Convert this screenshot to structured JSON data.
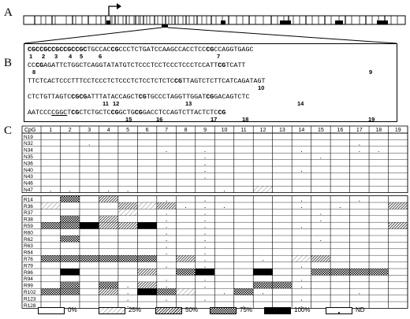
{
  "panels": {
    "a": "A",
    "b": "B",
    "c": "C"
  },
  "sequence": {
    "lines": [
      [
        [
          "CGC",
          "cg"
        ],
        [
          "CGC",
          "cg"
        ],
        [
          "CGC",
          "cg"
        ],
        [
          "CGC",
          "cg"
        ],
        [
          "CGC",
          "cg"
        ],
        [
          "TGCCAC",
          ""
        ],
        [
          "CG",
          "cg"
        ],
        [
          "CCCTCTGATCCAAGCCACCTCC",
          ""
        ],
        [
          "CG",
          "cg"
        ],
        [
          "CCAGGTGAGC",
          ""
        ]
      ],
      [
        [
          "CC",
          ""
        ],
        [
          "CG",
          "cg"
        ],
        [
          "AGATTCTGGCTCAGGTATATGTCTCCCTCCTCCCTCCCTCCATT",
          ""
        ],
        [
          "CG",
          "cg"
        ],
        [
          "TCATT",
          ""
        ]
      ],
      [
        [
          "TTCTCACTCCCTTTCCTCCCTCTCCCTCTCCTCTCTC",
          ""
        ],
        [
          "CG",
          "cg"
        ],
        [
          "TTAGTCTCTTCATCAGATAGT",
          ""
        ]
      ],
      [
        [
          "CTCTGTTAGTC",
          ""
        ],
        [
          "CG",
          "cg"
        ],
        [
          "CG",
          "cg"
        ],
        [
          "ATTTATACCAGCT",
          ""
        ],
        [
          "CG",
          "cg"
        ],
        [
          "TGCCCTAGGTTGGAT",
          ""
        ],
        [
          "CG",
          "cg"
        ],
        [
          "GACAGTCTC",
          ""
        ]
      ],
      [
        [
          "AATCCC",
          ""
        ],
        [
          "CGGC",
          "u"
        ],
        [
          "T",
          ""
        ],
        [
          "CG",
          "cg"
        ],
        [
          "CTCTGCTC",
          ""
        ],
        [
          "CG",
          "cg"
        ],
        [
          "GCTG",
          ""
        ],
        [
          "CG",
          "cg"
        ],
        [
          "GACCTCCAGTCTTACTCTC",
          ""
        ],
        [
          "CG",
          "cg"
        ]
      ]
    ],
    "cpg_labels": [
      "1",
      "2",
      "3",
      "4",
      "5",
      "6",
      "7",
      "8",
      "9",
      "10",
      "11",
      "12",
      "13",
      "14",
      "15",
      "16",
      "17",
      "18",
      "19"
    ]
  },
  "table": {
    "header_label": "CpG",
    "columns": [
      "1",
      "2",
      "3",
      "4",
      "5",
      "6",
      "7",
      "8",
      "9",
      "10",
      "11",
      "12",
      "13",
      "14",
      "15",
      "16",
      "17",
      "18",
      "19"
    ],
    "n_rows": [
      "N19",
      "N32",
      "N34",
      "N35",
      "N36",
      "N40",
      "N43",
      "N46",
      "N47"
    ],
    "r_rows": [
      "R14",
      "R36",
      "R37",
      "R38",
      "R59",
      "R60",
      "R62",
      "R63",
      "R64",
      "R76",
      "R79",
      "R86",
      "R94",
      "R99",
      "R102",
      "R123",
      "R128"
    ],
    "cells_n": [
      "0000000000000000000",
      "00N0000000000000N00",
      "000000N0N0000N00NN0",
      "00000000N00000N0000",
      "00000000N0000000000",
      "00000000N0000N00000",
      "00000000N0000000000",
      "0000000000000000000",
      "NN0NN0000N010000000"
    ],
    "cells_r": [
      "030200N0N0000N00N00",
      "1000212NNN000N0N002",
      "000010N0N00000N0000",
      "030200N0N00000N0000",
      "334224N0N0000N00002",
      "000000N0N0000000000",
      "030000N0N00000N0000",
      "000000N0N0000000000",
      "000000N0N0000000000",
      "33333302N00N0120000",
      "000000N0N0000N00000",
      "0400020340040033330",
      "000000N0N0000N00000",
      "0303N2N0N0033N00000",
      "3302N4310N3N0000N00",
      "0000N0N0N0000N00000",
      "0000N00000N00N00000"
    ]
  },
  "legend": [
    {
      "label": "0%",
      "level": "0"
    },
    {
      "label": "25%",
      "level": "1"
    },
    {
      "label": "50%",
      "level": "2"
    },
    {
      "label": "75%",
      "level": "3"
    },
    {
      "label": "100%",
      "level": "4"
    },
    {
      "label": "ND",
      "level": "N"
    }
  ],
  "colors": {
    "line": "#000000",
    "fill_100": "#000000",
    "nd_mark": "#000000"
  }
}
